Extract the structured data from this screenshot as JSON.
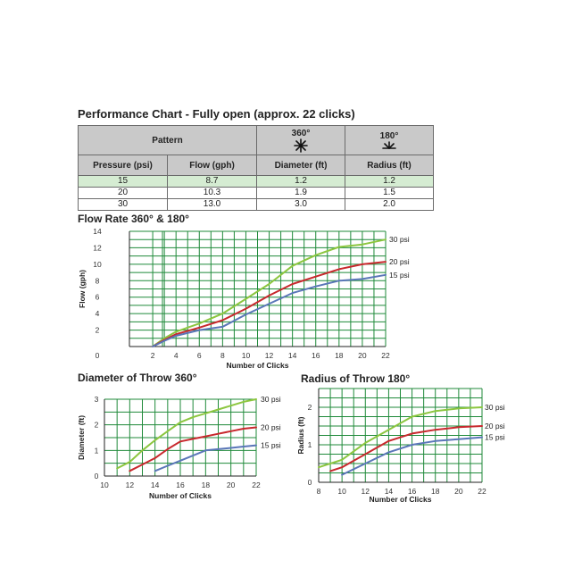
{
  "table": {
    "title": "Performance Chart - Fully open (approx. 22 clicks)",
    "pattern_label": "Pattern",
    "pattern_360": "360°",
    "pattern_180": "180°",
    "headers": [
      "Pressure (psi)",
      "Flow (gph)",
      "Diameter (ft)",
      "Radius (ft)"
    ],
    "rows": [
      [
        "15",
        "8.7",
        "1.2",
        "1.2"
      ],
      [
        "20",
        "10.3",
        "1.9",
        "1.5"
      ],
      [
        "30",
        "13.0",
        "3.0",
        "2.0"
      ]
    ]
  },
  "colors": {
    "grid": "#1f8a3a",
    "s15": "#5a76b8",
    "s20": "#c8282d",
    "s30": "#8cc63f"
  },
  "chart_data": [
    {
      "type": "line",
      "title": "Flow Rate 360° & 180°",
      "xlabel": "Number of Clicks",
      "ylabel": "Flow (gph)",
      "xlim": [
        0,
        22
      ],
      "ylim": [
        0,
        14
      ],
      "xticks": [
        2,
        4,
        6,
        8,
        10,
        12,
        14,
        16,
        18,
        20,
        22
      ],
      "yticks": [
        0,
        2,
        4,
        6,
        8,
        10,
        12,
        14
      ],
      "x_origin_label": "0",
      "series": [
        {
          "name": "30 psi",
          "key": "s30",
          "x": [
            2,
            3,
            4,
            6,
            8,
            10,
            12,
            14,
            16,
            18,
            20,
            22
          ],
          "y": [
            0,
            1.0,
            1.8,
            2.8,
            4.0,
            5.8,
            7.6,
            9.8,
            11.1,
            12.1,
            12.4,
            13.0
          ]
        },
        {
          "name": "20 psi",
          "key": "s20",
          "x": [
            2,
            3,
            4,
            6,
            8,
            10,
            12,
            14,
            16,
            18,
            20,
            22
          ],
          "y": [
            0,
            0.8,
            1.5,
            2.3,
            3.2,
            4.6,
            6.2,
            7.6,
            8.5,
            9.4,
            10.0,
            10.3
          ]
        },
        {
          "name": "15 psi",
          "key": "s15",
          "x": [
            2,
            3,
            4,
            6,
            8,
            10,
            12,
            14,
            16,
            18,
            20,
            22
          ],
          "y": [
            0,
            0.7,
            1.3,
            2.0,
            2.4,
            3.9,
            5.2,
            6.5,
            7.3,
            8.0,
            8.2,
            8.7
          ]
        }
      ]
    },
    {
      "type": "line",
      "title": "Diameter of Throw 360°",
      "xlabel": "Number of Clicks",
      "ylabel": "Diameter (ft)",
      "xlim": [
        10,
        22
      ],
      "ylim": [
        0,
        3
      ],
      "xticks": [
        10,
        12,
        14,
        16,
        18,
        20,
        22
      ],
      "yticks": [
        0,
        1,
        2,
        3
      ],
      "series": [
        {
          "name": "30 psi",
          "key": "s30",
          "x": [
            11,
            12,
            13,
            14,
            15,
            16,
            17,
            18,
            19,
            20,
            21,
            22
          ],
          "y": [
            0.3,
            0.55,
            1.0,
            1.4,
            1.75,
            2.1,
            2.3,
            2.45,
            2.6,
            2.75,
            2.9,
            3.0
          ]
        },
        {
          "name": "20 psi",
          "key": "s20",
          "x": [
            12,
            13,
            14,
            15,
            16,
            17,
            18,
            19,
            20,
            21,
            22
          ],
          "y": [
            0.2,
            0.45,
            0.7,
            1.05,
            1.35,
            1.45,
            1.55,
            1.65,
            1.75,
            1.85,
            1.9
          ]
        },
        {
          "name": "15 psi",
          "key": "s15",
          "x": [
            14,
            15,
            16,
            17,
            18,
            19,
            20,
            21,
            22
          ],
          "y": [
            0.2,
            0.4,
            0.6,
            0.8,
            1.0,
            1.05,
            1.1,
            1.15,
            1.2
          ]
        }
      ]
    },
    {
      "type": "line",
      "title": "Radius of Throw 180°",
      "xlabel": "Number of Clicks",
      "ylabel": "Radius (ft)",
      "xlim": [
        8,
        22
      ],
      "ylim": [
        0,
        2.5
      ],
      "xticks": [
        8,
        10,
        12,
        14,
        16,
        18,
        20,
        22
      ],
      "yticks": [
        0,
        1,
        2
      ],
      "series": [
        {
          "name": "30 psi",
          "key": "s30",
          "x": [
            8,
            10,
            12,
            14,
            16,
            18,
            20,
            22
          ],
          "y": [
            0.4,
            0.6,
            1.05,
            1.4,
            1.75,
            1.9,
            1.97,
            2.0
          ]
        },
        {
          "name": "20 psi",
          "key": "s20",
          "x": [
            9,
            10,
            12,
            14,
            16,
            18,
            20,
            22
          ],
          "y": [
            0.3,
            0.4,
            0.75,
            1.1,
            1.3,
            1.4,
            1.47,
            1.5
          ]
        },
        {
          "name": "15 psi",
          "key": "s15",
          "x": [
            10,
            12,
            14,
            16,
            18,
            20,
            22
          ],
          "y": [
            0.2,
            0.5,
            0.8,
            1.0,
            1.1,
            1.15,
            1.2
          ]
        }
      ]
    }
  ]
}
